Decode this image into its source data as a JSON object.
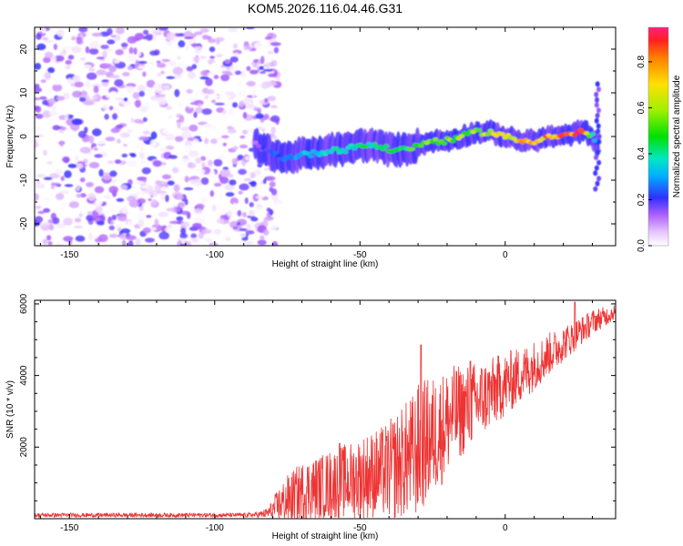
{
  "title": "KOM5.2026.116.04.46.G31",
  "chart_data": [
    {
      "type": "heatmap",
      "name": "spectrogram",
      "xlabel": "Height of straight line (km)",
      "ylabel": "Frequency (Hz)",
      "xlim": [
        -162,
        38
      ],
      "ylim": [
        -25,
        25
      ],
      "xticks": [
        -150,
        -100,
        -50,
        0
      ],
      "xtick_labels": [
        "-150",
        "-100",
        "-50",
        "0"
      ],
      "yticks": [
        -20,
        -10,
        0,
        10,
        20
      ],
      "ytick_labels": [
        "-20",
        "-10",
        "0",
        "10",
        "20"
      ],
      "noise_region": [
        -162,
        -82
      ],
      "signal_track": {
        "x": [
          -86,
          -80,
          -75,
          -70,
          -65,
          -60,
          -55,
          -50,
          -45,
          -40,
          -35,
          -30,
          -25,
          -20,
          -15,
          -10,
          -5,
          0,
          5,
          10,
          15,
          20,
          25,
          28,
          30,
          32
        ],
        "freq": [
          -2,
          -4,
          -5,
          -4,
          -4,
          -3,
          -3,
          -2,
          -2,
          -3,
          -3,
          -2,
          -1,
          -1,
          0,
          1,
          1,
          0,
          -1,
          -1,
          0,
          0,
          1,
          1,
          0,
          -3
        ],
        "amplitude": [
          0.15,
          0.25,
          0.3,
          0.35,
          0.35,
          0.4,
          0.42,
          0.45,
          0.45,
          0.5,
          0.5,
          0.55,
          0.6,
          0.6,
          0.62,
          0.65,
          0.7,
          0.75,
          0.78,
          0.82,
          0.85,
          0.9,
          0.92,
          0.85,
          0.5,
          0.2
        ]
      },
      "colorbar": {
        "label": "Normalized spectral amplitude",
        "range": [
          0,
          0.95
        ],
        "ticks": [
          0.0,
          0.2,
          0.4,
          0.6,
          0.8
        ],
        "tick_labels": [
          "0.0",
          "0.2",
          "0.4",
          "0.6",
          "0.8"
        ]
      }
    },
    {
      "type": "line",
      "name": "snr",
      "xlabel": "Height of straight line (km)",
      "ylabel": "SNR (10 * v/v)",
      "xlim": [
        -162,
        38
      ],
      "ylim": [
        0,
        6100
      ],
      "xticks": [
        -150,
        -100,
        -50,
        0
      ],
      "xtick_labels": [
        "-150",
        "-100",
        "-50",
        "0"
      ],
      "yticks": [
        2000,
        4000,
        6000
      ],
      "ytick_labels": [
        "2000",
        "4000",
        "6000"
      ],
      "color": "#ee3333",
      "series": [
        {
          "name": "SNR",
          "x": [
            -162,
            -150,
            -140,
            -130,
            -120,
            -110,
            -100,
            -90,
            -85,
            -82,
            -80,
            -78,
            -75,
            -72,
            -70,
            -68,
            -65,
            -62,
            -60,
            -58,
            -55,
            -52,
            -50,
            -48,
            -45,
            -42,
            -40,
            -38,
            -35,
            -33,
            -31,
            -30,
            -28,
            -25,
            -22,
            -20,
            -18,
            -15,
            -12,
            -10,
            -8,
            -5,
            -2,
            0,
            3,
            5,
            8,
            10,
            13,
            15,
            18,
            20,
            23,
            25,
            28,
            30,
            33,
            36,
            38
          ],
          "base": [
            100,
            100,
            100,
            100,
            100,
            100,
            100,
            100,
            110,
            150,
            250,
            380,
            520,
            650,
            750,
            800,
            850,
            900,
            950,
            1000,
            1050,
            1100,
            1150,
            1200,
            1250,
            1300,
            1350,
            1450,
            1600,
            1700,
            1800,
            1900,
            2100,
            2300,
            2500,
            2700,
            2900,
            3000,
            3150,
            3250,
            3350,
            3500,
            3650,
            3750,
            3900,
            4000,
            4150,
            4300,
            4450,
            4600,
            4750,
            4900,
            5050,
            5200,
            5350,
            5500,
            5600,
            5700,
            5800
          ],
          "amp": [
            60,
            60,
            60,
            60,
            60,
            60,
            60,
            60,
            80,
            150,
            300,
            500,
            700,
            800,
            850,
            900,
            900,
            950,
            1000,
            1000,
            1050,
            1100,
            1150,
            1200,
            1250,
            1300,
            1400,
            1500,
            1600,
            1700,
            1800,
            1900,
            1800,
            1700,
            1600,
            1500,
            1400,
            1300,
            1200,
            1150,
            1100,
            1000,
            950,
            900,
            850,
            800,
            750,
            700,
            650,
            600,
            550,
            500,
            450,
            420,
            380,
            350,
            300,
            250,
            200
          ]
        }
      ],
      "peaks": [
        {
          "x": -57,
          "y": 2100
        },
        {
          "x": -29,
          "y": 4850
        },
        {
          "x": -12,
          "y": 4400
        },
        {
          "x": 24,
          "y": 6050
        }
      ]
    }
  ]
}
